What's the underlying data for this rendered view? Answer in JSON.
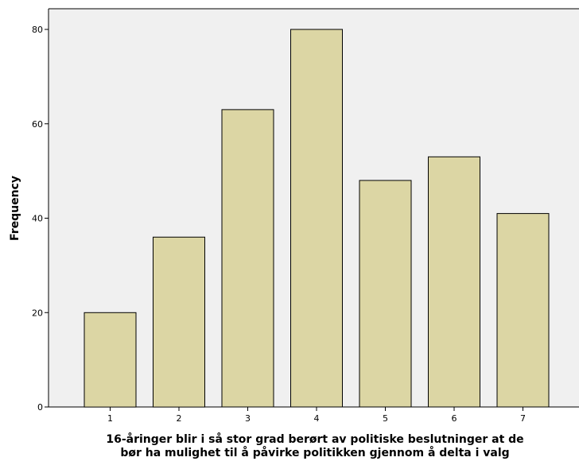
{
  "chart_data": {
    "type": "bar",
    "title": "",
    "xlabel_lines": [
      "16-åringer blir i så stor grad berørt av politiske beslutninger at de",
      "bør ha mulighet til å påvirke politikken gjennom å delta i valg"
    ],
    "ylabel": "Frequency",
    "categories": [
      "1",
      "2",
      "3",
      "4",
      "5",
      "6",
      "7"
    ],
    "values": [
      20,
      36,
      63,
      80,
      48,
      53,
      41
    ],
    "ylim": [
      0,
      80
    ],
    "yticks": [
      "0",
      "20",
      "40",
      "60",
      "80"
    ],
    "grid": false,
    "colors": {
      "bar_fill": "#dcd6a4",
      "bar_stroke": "#000000",
      "plot_background": "#f0f0f0"
    }
  }
}
